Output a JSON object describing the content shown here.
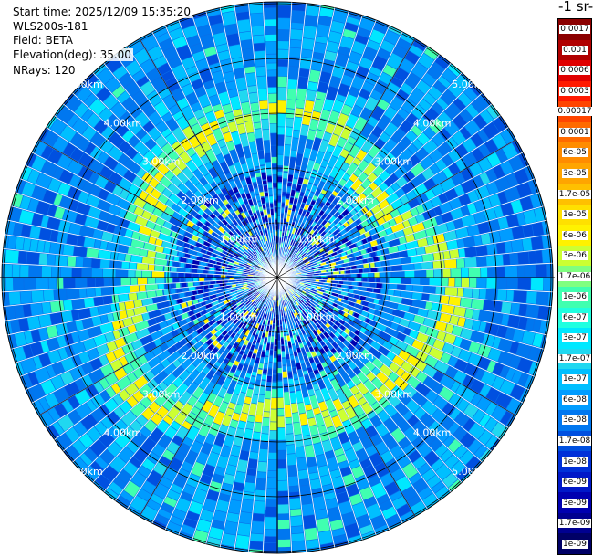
{
  "info": [
    "Start time: 2025/12/09 15:35:20",
    "WLS200s-181",
    "Field: BETA",
    "Elevation(deg): 35.00",
    "NRays: 120"
  ],
  "colorbar": {
    "units_fragment": "-1 sr-",
    "labels": [
      "0.0017",
      "0.001",
      "0.0006",
      "0.0003",
      "0.00017",
      "0.0001",
      "6e-05",
      "3e-05",
      "1.7e-05",
      "1e-05",
      "6e-06",
      "3e-06",
      "1.7e-06",
      "1e-06",
      "6e-07",
      "3e-07",
      "1.7e-07",
      "1e-07",
      "6e-08",
      "3e-08",
      "1.7e-08",
      "1e-08",
      "6e-09",
      "3e-09",
      "1.7e-09",
      "1e-09"
    ],
    "colors": [
      "#8b0000",
      "#b00000",
      "#e00000",
      "#ff1a00",
      "#ff4500",
      "#ff6a00",
      "#ff8c00",
      "#ffa500",
      "#ffc000",
      "#ffe000",
      "#fff200",
      "#ccff33",
      "#80ff80",
      "#40ffb0",
      "#20ffe0",
      "#00e8ff",
      "#20d8f0",
      "#00bfff",
      "#009cff",
      "#0077f0",
      "#0050e0",
      "#0030d8",
      "#0018c8",
      "#0000b0",
      "#000090",
      "#000066"
    ]
  },
  "chart_data": {
    "type": "heatmap",
    "projection": "polar PPI scan",
    "field": "BETA",
    "elevation_deg": 35.0,
    "n_rays": 120,
    "range_rings_km": [
      1,
      2,
      3,
      4,
      5
    ],
    "ring_labels": [
      "1.00km",
      "2.00km",
      "3.00km",
      "4.00km",
      "5.00km"
    ],
    "colorscale": "log",
    "value_range": [
      1e-09,
      0.0017
    ],
    "features": [
      {
        "description": "elevated backscatter ring",
        "range_km": [
          2.3,
          3.4
        ],
        "value_range": [
          1e-06,
          3e-06
        ]
      },
      {
        "description": "background",
        "value_range": [
          3e-08,
          1e-07
        ]
      }
    ]
  }
}
